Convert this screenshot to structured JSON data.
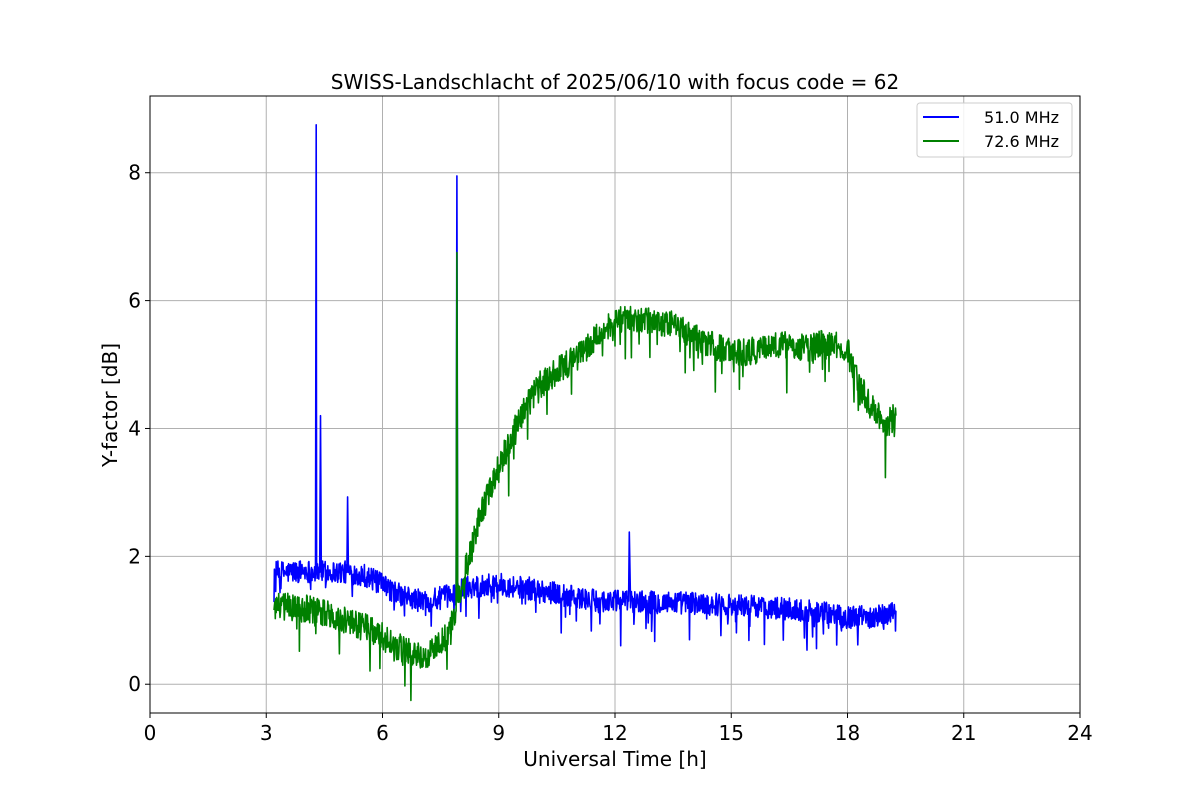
{
  "chart_data": {
    "type": "line",
    "title": "SWISS-Landschlacht of 2025/06/10 with focus code = 62",
    "xlabel": "Universal Time [h]",
    "ylabel": "Y-factor [dB]",
    "xlim": [
      0,
      24
    ],
    "ylim": [
      -0.45,
      9.2
    ],
    "xticks": [
      0,
      3,
      6,
      9,
      12,
      15,
      18,
      21,
      24
    ],
    "yticks": [
      0,
      2,
      4,
      6,
      8
    ],
    "grid": true,
    "legend_position": "top-right",
    "series": [
      {
        "name": "51.0 MHz",
        "color": "#0000ff",
        "x": [
          3.2,
          3.6,
          4.0,
          4.27,
          4.29,
          4.3,
          4.38,
          4.4,
          4.42,
          4.6,
          5.0,
          5.08,
          5.1,
          5.12,
          5.5,
          6.0,
          6.5,
          7.0,
          7.3,
          7.7,
          7.9,
          7.92,
          7.94,
          8.2,
          8.6,
          9.0,
          9.5,
          10.0,
          10.5,
          11.0,
          11.5,
          12.0,
          12.35,
          12.37,
          12.4,
          12.9,
          13.35,
          13.5,
          14.0,
          14.5,
          15.0,
          15.5,
          16.0,
          16.5,
          17.0,
          17.5,
          18.0,
          18.5,
          19.0,
          19.25
        ],
        "y": [
          1.75,
          1.75,
          1.78,
          1.75,
          8.75,
          1.75,
          1.75,
          4.2,
          1.75,
          1.76,
          1.75,
          1.75,
          2.93,
          1.75,
          1.72,
          1.55,
          1.38,
          1.3,
          1.32,
          1.38,
          1.42,
          7.95,
          1.45,
          1.52,
          1.55,
          1.56,
          1.52,
          1.48,
          1.42,
          1.35,
          1.3,
          1.3,
          1.3,
          2.38,
          1.3,
          1.28,
          1.28,
          1.28,
          1.27,
          1.25,
          1.25,
          1.22,
          1.2,
          1.17,
          1.15,
          1.1,
          1.05,
          1.05,
          1.1,
          1.15
        ],
        "noise": 0.18
      },
      {
        "name": "72.6 MHz",
        "color": "#008000",
        "x": [
          3.2,
          3.6,
          4.0,
          4.5,
          5.0,
          5.5,
          6.0,
          6.5,
          7.0,
          7.3,
          7.6,
          7.85,
          7.9,
          7.92,
          7.94,
          8.1,
          8.5,
          9.0,
          9.5,
          10.0,
          10.5,
          11.0,
          11.5,
          12.0,
          12.5,
          13.0,
          13.5,
          14.0,
          14.5,
          15.0,
          15.5,
          16.0,
          16.5,
          17.0,
          17.5,
          18.0,
          18.3,
          18.6,
          19.0,
          19.25
        ],
        "y": [
          1.2,
          1.22,
          1.18,
          1.1,
          1.0,
          0.9,
          0.75,
          0.55,
          0.45,
          0.5,
          0.7,
          1.0,
          1.15,
          6.75,
          1.3,
          1.7,
          2.6,
          3.4,
          4.1,
          4.65,
          4.9,
          5.1,
          5.4,
          5.7,
          5.7,
          5.65,
          5.65,
          5.45,
          5.3,
          5.2,
          5.2,
          5.3,
          5.3,
          5.25,
          5.35,
          5.2,
          4.7,
          4.35,
          4.05,
          4.2
        ],
        "noise": 0.22
      }
    ]
  }
}
